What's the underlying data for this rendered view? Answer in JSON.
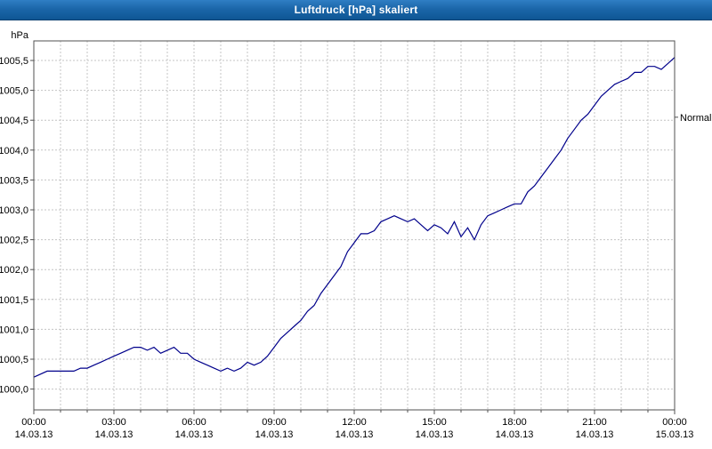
{
  "header": {
    "title": "Luftdruck [hPa] skaliert"
  },
  "colors": {
    "titlebar": "#1b66a9",
    "title_text": "#ffffff",
    "line": "#00008b",
    "grid": "#c4c4c4",
    "axis": "#505050",
    "plot_bg": "#ffffff"
  },
  "chart_data": {
    "type": "line",
    "title": "Luftdruck [hPa] skaliert",
    "ylabel": "hPa",
    "y_unit_label": "hPa",
    "grid": "on-dashed",
    "legend_position": "none",
    "ylim": [
      999.65,
      1005.83
    ],
    "xlim_hours": [
      0,
      24
    ],
    "y_ticks": [
      {
        "value": 1005.5,
        "label": "1005,5"
      },
      {
        "value": 1005.0,
        "label": "1005,0"
      },
      {
        "value": 1004.5,
        "label": "1004,5"
      },
      {
        "value": 1004.0,
        "label": "1004,0"
      },
      {
        "value": 1003.5,
        "label": "1003,5"
      },
      {
        "value": 1003.0,
        "label": "1003,0"
      },
      {
        "value": 1002.5,
        "label": "1002,5"
      },
      {
        "value": 1002.0,
        "label": "1002,0"
      },
      {
        "value": 1001.5,
        "label": "1001,5"
      },
      {
        "value": 1001.0,
        "label": "1001,0"
      },
      {
        "value": 1000.5,
        "label": "1000,5"
      },
      {
        "value": 1000.0,
        "label": "1000,0"
      }
    ],
    "x_ticks": [
      {
        "hour": 0,
        "time": "00:00",
        "date": "14.03.13"
      },
      {
        "hour": 3,
        "time": "03:00",
        "date": "14.03.13"
      },
      {
        "hour": 6,
        "time": "06:00",
        "date": "14.03.13"
      },
      {
        "hour": 9,
        "time": "09:00",
        "date": "14.03.13"
      },
      {
        "hour": 12,
        "time": "12:00",
        "date": "14.03.13"
      },
      {
        "hour": 15,
        "time": "15:00",
        "date": "14.03.13"
      },
      {
        "hour": 18,
        "time": "18:00",
        "date": "14.03.13"
      },
      {
        "hour": 21,
        "time": "21:00",
        "date": "14.03.13"
      },
      {
        "hour": 24,
        "time": "00:00",
        "date": "15.03.13"
      }
    ],
    "annotations": [
      {
        "label": "Normal",
        "value": 1004.55
      }
    ],
    "series": [
      {
        "name": "Luftdruck",
        "color": "#00008b",
        "points": [
          [
            0,
            1000.2
          ],
          [
            0.25,
            1000.25
          ],
          [
            0.5,
            1000.3
          ],
          [
            0.75,
            1000.3
          ],
          [
            1,
            1000.3
          ],
          [
            1.25,
            1000.3
          ],
          [
            1.5,
            1000.3
          ],
          [
            1.75,
            1000.35
          ],
          [
            2,
            1000.35
          ],
          [
            2.25,
            1000.4
          ],
          [
            2.5,
            1000.45
          ],
          [
            2.75,
            1000.5
          ],
          [
            3,
            1000.55
          ],
          [
            3.25,
            1000.6
          ],
          [
            3.5,
            1000.65
          ],
          [
            3.75,
            1000.7
          ],
          [
            4,
            1000.7
          ],
          [
            4.25,
            1000.65
          ],
          [
            4.5,
            1000.7
          ],
          [
            4.75,
            1000.6
          ],
          [
            5,
            1000.65
          ],
          [
            5.25,
            1000.7
          ],
          [
            5.5,
            1000.6
          ],
          [
            5.75,
            1000.6
          ],
          [
            6,
            1000.5
          ],
          [
            6.25,
            1000.45
          ],
          [
            6.5,
            1000.4
          ],
          [
            6.75,
            1000.35
          ],
          [
            7,
            1000.3
          ],
          [
            7.25,
            1000.35
          ],
          [
            7.5,
            1000.3
          ],
          [
            7.75,
            1000.35
          ],
          [
            8,
            1000.45
          ],
          [
            8.25,
            1000.4
          ],
          [
            8.5,
            1000.45
          ],
          [
            8.75,
            1000.55
          ],
          [
            9,
            1000.7
          ],
          [
            9.25,
            1000.85
          ],
          [
            9.5,
            1000.95
          ],
          [
            9.75,
            1001.05
          ],
          [
            10,
            1001.15
          ],
          [
            10.25,
            1001.3
          ],
          [
            10.5,
            1001.4
          ],
          [
            10.75,
            1001.6
          ],
          [
            11,
            1001.75
          ],
          [
            11.25,
            1001.9
          ],
          [
            11.5,
            1002.05
          ],
          [
            11.75,
            1002.3
          ],
          [
            12,
            1002.45
          ],
          [
            12.25,
            1002.6
          ],
          [
            12.5,
            1002.6
          ],
          [
            12.75,
            1002.65
          ],
          [
            13,
            1002.8
          ],
          [
            13.25,
            1002.85
          ],
          [
            13.5,
            1002.9
          ],
          [
            13.75,
            1002.85
          ],
          [
            14,
            1002.8
          ],
          [
            14.25,
            1002.85
          ],
          [
            14.5,
            1002.75
          ],
          [
            14.75,
            1002.65
          ],
          [
            15,
            1002.75
          ],
          [
            15.25,
            1002.7
          ],
          [
            15.5,
            1002.6
          ],
          [
            15.75,
            1002.8
          ],
          [
            16,
            1002.55
          ],
          [
            16.25,
            1002.7
          ],
          [
            16.5,
            1002.5
          ],
          [
            16.75,
            1002.75
          ],
          [
            17,
            1002.9
          ],
          [
            17.25,
            1002.95
          ],
          [
            17.5,
            1003.0
          ],
          [
            17.75,
            1003.05
          ],
          [
            18,
            1003.1
          ],
          [
            18.25,
            1003.1
          ],
          [
            18.5,
            1003.3
          ],
          [
            18.75,
            1003.4
          ],
          [
            19,
            1003.55
          ],
          [
            19.25,
            1003.7
          ],
          [
            19.5,
            1003.85
          ],
          [
            19.75,
            1004.0
          ],
          [
            20,
            1004.2
          ],
          [
            20.25,
            1004.35
          ],
          [
            20.5,
            1004.5
          ],
          [
            20.75,
            1004.6
          ],
          [
            21,
            1004.75
          ],
          [
            21.25,
            1004.9
          ],
          [
            21.5,
            1005.0
          ],
          [
            21.75,
            1005.1
          ],
          [
            22,
            1005.15
          ],
          [
            22.25,
            1005.2
          ],
          [
            22.5,
            1005.3
          ],
          [
            22.75,
            1005.3
          ],
          [
            23,
            1005.4
          ],
          [
            23.25,
            1005.4
          ],
          [
            23.5,
            1005.35
          ],
          [
            23.75,
            1005.45
          ],
          [
            24,
            1005.55
          ]
        ]
      }
    ]
  }
}
